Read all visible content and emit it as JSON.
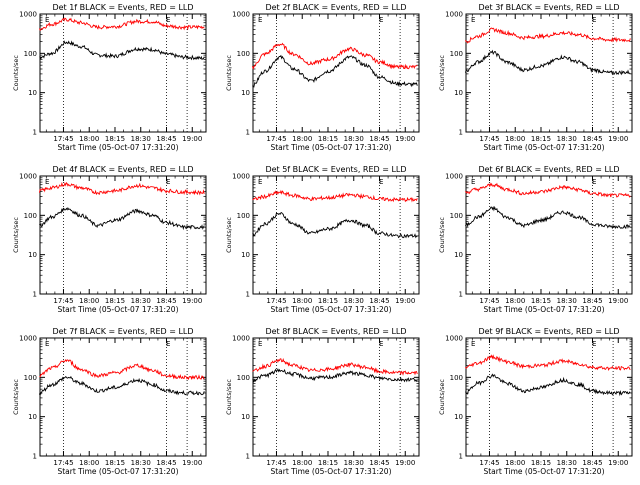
{
  "figure": {
    "colors": {
      "events": "#000000",
      "lld": "#ff0000",
      "background": "#ffffff"
    },
    "start_time": "05-Oct-07 17:31:20"
  },
  "chart_data": [
    {
      "type": "line",
      "title": "Det 1f BLACK = Events, RED = LLD",
      "xlabel": "Start Time (05-Oct-07 17:31:20)",
      "ylabel": "Counts/sec",
      "yscale": "log",
      "ylim": [
        1,
        1000
      ],
      "xlim": [
        "17:31:20",
        "19:08:00"
      ],
      "x_tick_labels": [
        "17:45",
        "18:00",
        "18:15",
        "18:30",
        "18:45",
        "19:00"
      ],
      "y_tick_labels": [
        "1",
        "10",
        "100",
        "1000"
      ],
      "top_marks": [
        "E",
        "E"
      ],
      "dotted_lines_at": [
        "17:45",
        "18:45",
        "18:57"
      ],
      "series": [
        {
          "name": "Events",
          "color": "#000000",
          "x": [
            "17:31",
            "17:38",
            "17:47",
            "17:55",
            "18:05",
            "18:15",
            "18:28",
            "18:37",
            "18:45",
            "18:55",
            "19:07"
          ],
          "values": [
            80,
            100,
            190,
            150,
            90,
            85,
            130,
            125,
            95,
            80,
            75
          ]
        },
        {
          "name": "LLD",
          "color": "#ff0000",
          "x": [
            "17:31",
            "17:38",
            "17:47",
            "17:55",
            "18:05",
            "18:15",
            "18:28",
            "18:37",
            "18:45",
            "18:55",
            "19:07"
          ],
          "values": [
            420,
            550,
            720,
            600,
            460,
            480,
            650,
            640,
            500,
            460,
            470
          ]
        }
      ]
    },
    {
      "type": "line",
      "title": "Det 2f BLACK = Events, RED = LLD",
      "xlabel": "Start Time (05-Oct-07 17:31:20)",
      "ylabel": "Counts/sec",
      "yscale": "log",
      "ylim": [
        1,
        1000
      ],
      "xlim": [
        "17:31:20",
        "19:08:00"
      ],
      "x_tick_labels": [
        "17:45",
        "18:00",
        "18:15",
        "18:30",
        "18:45",
        "19:00"
      ],
      "y_tick_labels": [
        "1",
        "10",
        "100",
        "1000"
      ],
      "top_marks": [
        "E",
        "E"
      ],
      "dotted_lines_at": [
        "17:45",
        "18:45",
        "18:57"
      ],
      "series": [
        {
          "name": "Events",
          "color": "#000000",
          "x": [
            "17:31",
            "17:38",
            "17:47",
            "17:55",
            "18:05",
            "18:15",
            "18:28",
            "18:37",
            "18:45",
            "18:55",
            "19:07"
          ],
          "values": [
            15,
            35,
            80,
            40,
            20,
            35,
            80,
            50,
            25,
            17,
            16
          ]
        },
        {
          "name": "LLD",
          "color": "#ff0000",
          "x": [
            "17:31",
            "17:38",
            "17:47",
            "17:55",
            "18:05",
            "18:15",
            "18:28",
            "18:37",
            "18:45",
            "18:55",
            "19:07"
          ],
          "values": [
            45,
            95,
            170,
            95,
            55,
            70,
            130,
            90,
            60,
            45,
            45
          ]
        }
      ]
    },
    {
      "type": "line",
      "title": "Det 3f BLACK = Events, RED = LLD",
      "xlabel": "Start Time (05-Oct-07 17:31:20)",
      "ylabel": "Counts/sec",
      "yscale": "log",
      "ylim": [
        1,
        1000
      ],
      "xlim": [
        "17:31:20",
        "19:08:00"
      ],
      "x_tick_labels": [
        "17:45",
        "18:00",
        "18:15",
        "18:30",
        "18:45",
        "19:00"
      ],
      "y_tick_labels": [
        "1",
        "10",
        "100",
        "1000"
      ],
      "top_marks": [
        "E",
        "E"
      ],
      "dotted_lines_at": [
        "17:45",
        "18:45",
        "18:57"
      ],
      "series": [
        {
          "name": "Events",
          "color": "#000000",
          "x": [
            "17:31",
            "17:38",
            "17:47",
            "17:55",
            "18:05",
            "18:15",
            "18:28",
            "18:37",
            "18:45",
            "18:55",
            "19:07"
          ],
          "values": [
            35,
            60,
            105,
            60,
            38,
            48,
            80,
            60,
            38,
            32,
            33
          ]
        },
        {
          "name": "LLD",
          "color": "#ff0000",
          "x": [
            "17:31",
            "17:38",
            "17:47",
            "17:55",
            "18:05",
            "18:15",
            "18:28",
            "18:37",
            "18:45",
            "18:55",
            "19:07"
          ],
          "values": [
            200,
            270,
            400,
            330,
            250,
            270,
            330,
            300,
            240,
            220,
            220
          ]
        }
      ]
    },
    {
      "type": "line",
      "title": "Det 4f BLACK = Events, RED = LLD",
      "xlabel": "Start Time (05-Oct-07 17:31:20)",
      "ylabel": "Counts/sec",
      "yscale": "log",
      "ylim": [
        1,
        1000
      ],
      "xlim": [
        "17:31:20",
        "19:08:00"
      ],
      "x_tick_labels": [
        "17:45",
        "18:00",
        "18:15",
        "18:30",
        "18:45",
        "19:00"
      ],
      "y_tick_labels": [
        "1",
        "10",
        "100",
        "1000"
      ],
      "top_marks": [
        "E",
        "E"
      ],
      "dotted_lines_at": [
        "17:45",
        "18:45",
        "18:57"
      ],
      "series": [
        {
          "name": "Events",
          "color": "#000000",
          "x": [
            "17:31",
            "17:38",
            "17:47",
            "17:55",
            "18:05",
            "18:15",
            "18:28",
            "18:37",
            "18:45",
            "18:55",
            "19:07"
          ],
          "values": [
            55,
            90,
            150,
            100,
            55,
            75,
            130,
            100,
            65,
            50,
            50
          ]
        },
        {
          "name": "LLD",
          "color": "#ff0000",
          "x": [
            "17:31",
            "17:38",
            "17:47",
            "17:55",
            "18:05",
            "18:15",
            "18:28",
            "18:37",
            "18:45",
            "18:55",
            "19:07"
          ],
          "values": [
            420,
            500,
            620,
            500,
            380,
            420,
            570,
            500,
            420,
            390,
            380
          ]
        }
      ]
    },
    {
      "type": "line",
      "title": "Det 5f BLACK = Events, RED = LLD",
      "xlabel": "Start Time (05-Oct-07 17:31:20)",
      "ylabel": "Counts/sec",
      "yscale": "log",
      "ylim": [
        1,
        1000
      ],
      "xlim": [
        "17:31:20",
        "19:08:00"
      ],
      "x_tick_labels": [
        "17:45",
        "18:00",
        "18:15",
        "18:30",
        "18:45",
        "19:00"
      ],
      "y_tick_labels": [
        "1",
        "10",
        "100",
        "1000"
      ],
      "top_marks": [
        "E",
        "E"
      ],
      "dotted_lines_at": [
        "17:45",
        "18:45",
        "18:57"
      ],
      "series": [
        {
          "name": "Events",
          "color": "#000000",
          "x": [
            "17:31",
            "17:38",
            "17:47",
            "17:55",
            "18:05",
            "18:15",
            "18:28",
            "18:37",
            "18:45",
            "18:55",
            "19:07"
          ],
          "values": [
            32,
            60,
            110,
            60,
            35,
            45,
            75,
            55,
            35,
            30,
            30
          ]
        },
        {
          "name": "LLD",
          "color": "#ff0000",
          "x": [
            "17:31",
            "17:38",
            "17:47",
            "17:55",
            "18:05",
            "18:15",
            "18:28",
            "18:37",
            "18:45",
            "18:55",
            "19:07"
          ],
          "values": [
            250,
            300,
            380,
            320,
            260,
            280,
            330,
            300,
            260,
            250,
            250
          ]
        }
      ]
    },
    {
      "type": "line",
      "title": "Det 6f BLACK = Events, RED = LLD",
      "xlabel": "Start Time (05-Oct-07 17:31:20)",
      "ylabel": "Counts/sec",
      "yscale": "log",
      "ylim": [
        1,
        1000
      ],
      "xlim": [
        "17:31:20",
        "19:08:00"
      ],
      "x_tick_labels": [
        "17:45",
        "18:00",
        "18:15",
        "18:30",
        "18:45",
        "19:00"
      ],
      "y_tick_labels": [
        "1",
        "10",
        "100",
        "1000"
      ],
      "top_marks": [
        "E",
        "E"
      ],
      "dotted_lines_at": [
        "17:45",
        "18:45",
        "18:57"
      ],
      "series": [
        {
          "name": "Events",
          "color": "#000000",
          "x": [
            "17:31",
            "17:38",
            "17:47",
            "17:55",
            "18:05",
            "18:15",
            "18:28",
            "18:37",
            "18:45",
            "18:55",
            "19:07"
          ],
          "values": [
            55,
            90,
            150,
            90,
            55,
            75,
            120,
            90,
            60,
            52,
            52
          ]
        },
        {
          "name": "LLD",
          "color": "#ff0000",
          "x": [
            "17:31",
            "17:38",
            "17:47",
            "17:55",
            "18:05",
            "18:15",
            "18:28",
            "18:37",
            "18:45",
            "18:55",
            "19:07"
          ],
          "values": [
            380,
            460,
            600,
            460,
            360,
            400,
            520,
            450,
            360,
            320,
            320
          ]
        }
      ]
    },
    {
      "type": "line",
      "title": "Det 7f BLACK = Events, RED = LLD",
      "xlabel": "Start Time (05-Oct-07 17:31:20)",
      "ylabel": "Counts/sec",
      "yscale": "log",
      "ylim": [
        1,
        1000
      ],
      "xlim": [
        "17:31:20",
        "19:08:00"
      ],
      "x_tick_labels": [
        "17:45",
        "18:00",
        "18:15",
        "18:30",
        "18:45",
        "19:00"
      ],
      "y_tick_labels": [
        "1",
        "10",
        "100",
        "1000"
      ],
      "top_marks": [
        "E",
        "E"
      ],
      "dotted_lines_at": [
        "17:45",
        "18:45",
        "18:57"
      ],
      "series": [
        {
          "name": "Events",
          "color": "#000000",
          "x": [
            "17:31",
            "17:38",
            "17:47",
            "17:55",
            "18:05",
            "18:15",
            "18:28",
            "18:37",
            "18:45",
            "18:55",
            "19:07"
          ],
          "values": [
            40,
            65,
            100,
            70,
            45,
            55,
            85,
            65,
            45,
            40,
            40
          ]
        },
        {
          "name": "LLD",
          "color": "#ff0000",
          "x": [
            "17:31",
            "17:38",
            "17:47",
            "17:55",
            "18:05",
            "18:15",
            "18:28",
            "18:37",
            "18:45",
            "18:55",
            "19:07"
          ],
          "values": [
            110,
            170,
            270,
            160,
            110,
            130,
            200,
            150,
            110,
            100,
            100
          ]
        }
      ]
    },
    {
      "type": "line",
      "title": "Det 8f BLACK = Events, RED = LLD",
      "xlabel": "Start Time (05-Oct-07 17:31:20)",
      "ylabel": "Counts/sec",
      "yscale": "log",
      "ylim": [
        1,
        1000
      ],
      "xlim": [
        "17:31:20",
        "19:08:00"
      ],
      "x_tick_labels": [
        "17:45",
        "18:00",
        "18:15",
        "18:30",
        "18:45",
        "19:00"
      ],
      "y_tick_labels": [
        "1",
        "10",
        "100",
        "1000"
      ],
      "top_marks": [
        "E",
        "E"
      ],
      "dotted_lines_at": [
        "17:45",
        "18:45",
        "18:57"
      ],
      "series": [
        {
          "name": "Events",
          "color": "#000000",
          "x": [
            "17:31",
            "17:38",
            "17:47",
            "17:55",
            "18:05",
            "18:15",
            "18:28",
            "18:37",
            "18:45",
            "18:55",
            "19:07"
          ],
          "values": [
            85,
            110,
            150,
            120,
            95,
            100,
            130,
            115,
            95,
            88,
            88
          ]
        },
        {
          "name": "LLD",
          "color": "#ff0000",
          "x": [
            "17:31",
            "17:38",
            "17:47",
            "17:55",
            "18:05",
            "18:15",
            "18:28",
            "18:37",
            "18:45",
            "18:55",
            "19:07"
          ],
          "values": [
            140,
            190,
            270,
            200,
            150,
            160,
            210,
            180,
            140,
            130,
            130
          ]
        }
      ]
    },
    {
      "type": "line",
      "title": "Det 9f BLACK = Events, RED = LLD",
      "xlabel": "Start Time (05-Oct-07 17:31:20)",
      "ylabel": "Counts/sec",
      "yscale": "log",
      "ylim": [
        1,
        1000
      ],
      "xlim": [
        "17:31:20",
        "19:08:00"
      ],
      "x_tick_labels": [
        "17:45",
        "18:00",
        "18:15",
        "18:30",
        "18:45",
        "19:00"
      ],
      "y_tick_labels": [
        "1",
        "10",
        "100",
        "1000"
      ],
      "top_marks": [
        "E",
        "E"
      ],
      "dotted_lines_at": [
        "17:45",
        "18:45",
        "18:57"
      ],
      "series": [
        {
          "name": "Events",
          "color": "#000000",
          "x": [
            "17:31",
            "17:38",
            "17:47",
            "17:55",
            "18:05",
            "18:15",
            "18:28",
            "18:37",
            "18:45",
            "18:55",
            "19:07"
          ],
          "values": [
            40,
            70,
            110,
            70,
            45,
            55,
            85,
            65,
            45,
            40,
            40
          ]
        },
        {
          "name": "LLD",
          "color": "#ff0000",
          "x": [
            "17:31",
            "17:38",
            "17:47",
            "17:55",
            "18:05",
            "18:15",
            "18:28",
            "18:37",
            "18:45",
            "18:55",
            "19:07"
          ],
          "values": [
            180,
            230,
            330,
            250,
            190,
            200,
            260,
            220,
            180,
            170,
            170
          ]
        }
      ]
    }
  ]
}
